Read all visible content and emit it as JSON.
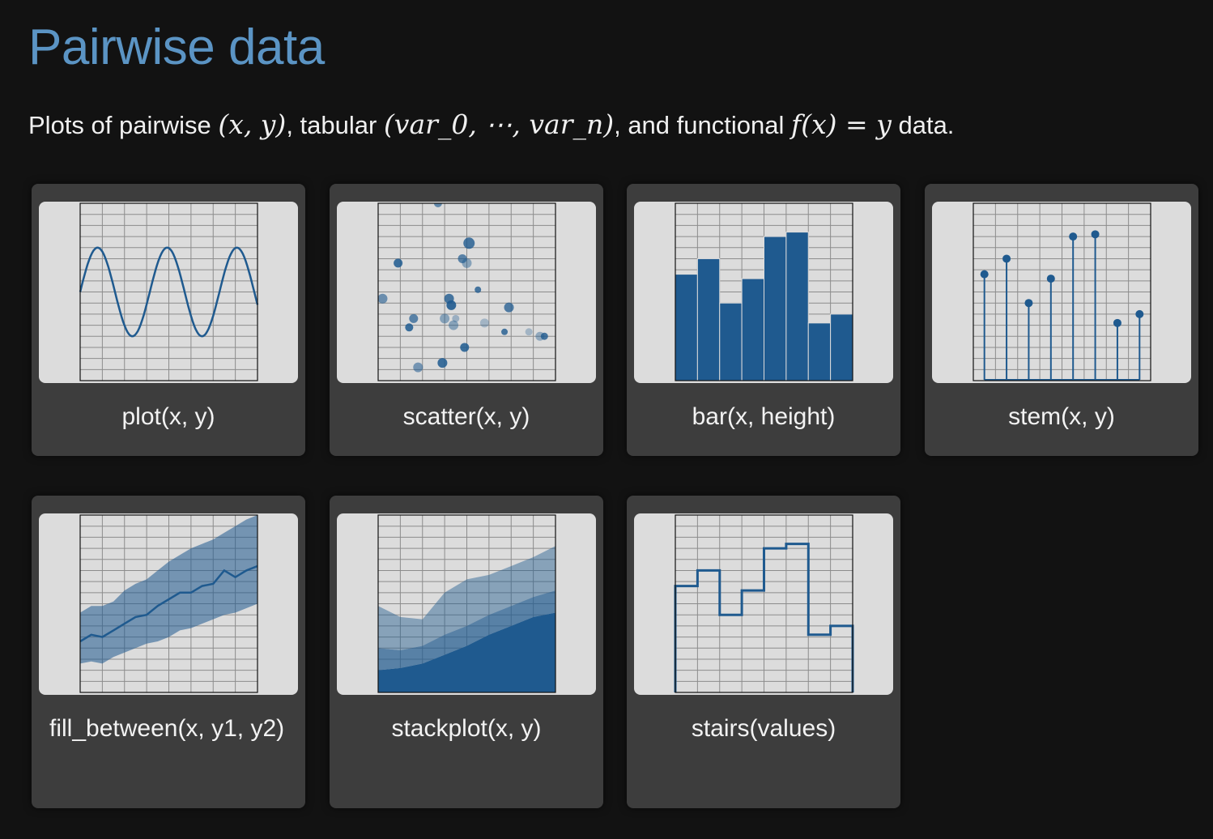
{
  "header": {
    "title": "Pairwise data",
    "intro_prefix": "Plots of pairwise ",
    "intro_xy": "(x, y)",
    "intro_mid1": ", tabular ",
    "intro_tab_open": "(var_0, ",
    "intro_dots": "⋯",
    "intro_tab_close": ", var_n)",
    "intro_mid2": ", and functional ",
    "intro_fx": "f(x)",
    "intro_eq": " = ",
    "intro_y": "y",
    "intro_suffix": " data."
  },
  "colors": {
    "accent": "#5b94c4",
    "plot_blue": "#1f5a8f",
    "card_bg": "#3d3d3d",
    "thumb_bg": "#dcdcdc"
  },
  "cards": [
    {
      "label": "plot(x, y)"
    },
    {
      "label": "scatter(x, y)"
    },
    {
      "label": "bar(x, height)"
    },
    {
      "label": "stem(x, y)"
    },
    {
      "label": "fill_between(x, y1, y2)"
    },
    {
      "label": "stackplot(x, y)"
    },
    {
      "label": "stairs(values)"
    }
  ],
  "chart_data": [
    {
      "type": "line",
      "name": "plot",
      "xlim": [
        0,
        8
      ],
      "ylim": [
        0,
        8
      ],
      "function": "4 + 2*sin(2*x)",
      "samples": 120
    },
    {
      "type": "scatter",
      "name": "scatter",
      "xlim": [
        0,
        8
      ],
      "ylim": [
        0,
        8
      ],
      "points": [
        {
          "x": 2.7,
          "y": 8.0,
          "s": 8,
          "o": 0.65
        },
        {
          "x": 4.1,
          "y": 6.2,
          "s": 12,
          "o": 0.8
        },
        {
          "x": 0.9,
          "y": 5.3,
          "s": 9,
          "o": 0.85
        },
        {
          "x": 3.8,
          "y": 5.5,
          "s": 9,
          "o": 0.7
        },
        {
          "x": 4.0,
          "y": 5.3,
          "s": 10,
          "o": 0.45
        },
        {
          "x": 4.5,
          "y": 4.1,
          "s": 6,
          "o": 0.8
        },
        {
          "x": 0.2,
          "y": 3.7,
          "s": 10,
          "o": 0.6
        },
        {
          "x": 3.2,
          "y": 3.7,
          "s": 10,
          "o": 0.8
        },
        {
          "x": 3.3,
          "y": 3.4,
          "s": 10,
          "o": 0.9
        },
        {
          "x": 5.9,
          "y": 3.3,
          "s": 10,
          "o": 0.75
        },
        {
          "x": 1.6,
          "y": 2.8,
          "s": 9,
          "o": 0.7
        },
        {
          "x": 3.0,
          "y": 2.8,
          "s": 10,
          "o": 0.45
        },
        {
          "x": 3.5,
          "y": 2.8,
          "s": 7,
          "o": 0.35
        },
        {
          "x": 1.4,
          "y": 2.4,
          "s": 8,
          "o": 0.85
        },
        {
          "x": 3.4,
          "y": 2.5,
          "s": 10,
          "o": 0.45
        },
        {
          "x": 4.8,
          "y": 2.6,
          "s": 9,
          "o": 0.3
        },
        {
          "x": 5.7,
          "y": 2.2,
          "s": 6,
          "o": 0.8
        },
        {
          "x": 6.8,
          "y": 2.2,
          "s": 7,
          "o": 0.3
        },
        {
          "x": 7.3,
          "y": 2.0,
          "s": 9,
          "o": 0.4
        },
        {
          "x": 7.5,
          "y": 2.0,
          "s": 7,
          "o": 0.8
        },
        {
          "x": 3.9,
          "y": 1.5,
          "s": 9,
          "o": 0.85
        },
        {
          "x": 2.9,
          "y": 0.8,
          "s": 10,
          "o": 0.85
        },
        {
          "x": 1.8,
          "y": 0.6,
          "s": 10,
          "o": 0.55
        }
      ]
    },
    {
      "type": "bar",
      "name": "bar",
      "xlim": [
        0,
        8
      ],
      "ylim": [
        0,
        8
      ],
      "values": [
        4.8,
        5.5,
        3.5,
        4.6,
        6.5,
        6.7,
        2.6,
        3.0
      ]
    },
    {
      "type": "stem",
      "name": "stem",
      "xlim": [
        0,
        8
      ],
      "ylim": [
        0,
        8
      ],
      "x": [
        0.5,
        1.5,
        2.5,
        3.5,
        4.5,
        5.5,
        6.5,
        7.5
      ],
      "values": [
        4.8,
        5.5,
        3.5,
        4.6,
        6.5,
        6.6,
        2.6,
        3.0
      ]
    },
    {
      "type": "area",
      "name": "fill_between",
      "xlim": [
        0,
        8
      ],
      "ylim": [
        0,
        8
      ],
      "x": [
        0,
        0.5,
        1,
        1.5,
        2,
        2.5,
        3,
        3.5,
        4,
        4.5,
        5,
        5.5,
        6,
        6.5,
        7,
        7.5,
        8
      ],
      "y_mid": [
        2.3,
        2.6,
        2.5,
        2.8,
        3.1,
        3.4,
        3.5,
        3.9,
        4.2,
        4.5,
        4.5,
        4.8,
        4.9,
        5.5,
        5.2,
        5.5,
        5.7
      ],
      "y_low": [
        1.3,
        1.4,
        1.3,
        1.6,
        1.8,
        2.0,
        2.2,
        2.3,
        2.5,
        2.8,
        2.9,
        3.1,
        3.3,
        3.5,
        3.6,
        3.8,
        4.0
      ],
      "y_high": [
        3.6,
        3.9,
        3.9,
        4.1,
        4.6,
        4.9,
        5.1,
        5.5,
        5.9,
        6.2,
        6.5,
        6.7,
        6.9,
        7.2,
        7.5,
        7.8,
        8.0
      ]
    },
    {
      "type": "area",
      "name": "stackplot",
      "xlim": [
        0,
        8
      ],
      "ylim": [
        0,
        8
      ],
      "x": [
        0,
        1,
        2,
        3,
        4,
        5,
        6,
        7,
        8
      ],
      "layers": [
        [
          1.0,
          1.1,
          1.3,
          1.7,
          2.1,
          2.6,
          3.0,
          3.4,
          3.6
        ],
        [
          1.0,
          0.8,
          0.8,
          0.9,
          0.9,
          0.9,
          0.9,
          0.9,
          1.0
        ],
        [
          1.9,
          1.5,
          1.2,
          1.9,
          2.1,
          1.8,
          1.8,
          1.8,
          2.0
        ]
      ]
    },
    {
      "type": "line",
      "name": "stairs",
      "xlim": [
        0,
        8
      ],
      "ylim": [
        0,
        8
      ],
      "edges": [
        0,
        1,
        2,
        3,
        4,
        5,
        6,
        7,
        8
      ],
      "values": [
        4.8,
        5.5,
        3.5,
        4.6,
        6.5,
        6.7,
        2.6,
        3.0
      ]
    }
  ]
}
